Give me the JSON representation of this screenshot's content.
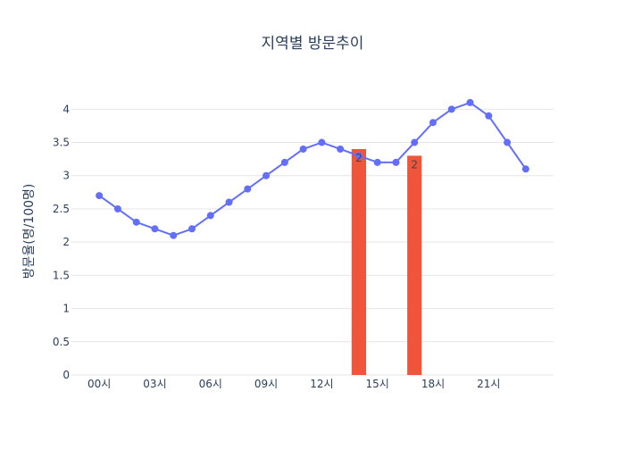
{
  "chart_data": {
    "type": "line",
    "title": "지역별 방문추이",
    "ylabel": "방문율(명/100명)",
    "xlabel": "",
    "ylim": [
      0,
      4.3
    ],
    "yticks": [
      0,
      0.5,
      1,
      1.5,
      2,
      2.5,
      3,
      3.5,
      4
    ],
    "ytick_labels": [
      "0",
      "0.5",
      "1",
      "1.5",
      "2",
      "2.5",
      "3",
      "3.5",
      "4"
    ],
    "xticks": [
      0,
      3,
      6,
      9,
      12,
      15,
      18,
      21
    ],
    "xtick_labels": [
      "00시",
      "03시",
      "06시",
      "09시",
      "12시",
      "15시",
      "18시",
      "21시"
    ],
    "grid": true,
    "series": [
      {
        "type": "line",
        "color": "#636efa",
        "x": [
          0,
          1,
          2,
          3,
          4,
          5,
          6,
          7,
          8,
          9,
          10,
          11,
          12,
          13,
          14,
          15,
          16,
          17,
          18,
          19,
          20,
          21,
          22,
          23
        ],
        "values": [
          2.7,
          2.5,
          2.3,
          2.2,
          2.1,
          2.2,
          2.4,
          2.6,
          2.8,
          3.0,
          3.2,
          3.4,
          3.5,
          3.4,
          3.3,
          3.2,
          3.2,
          3.5,
          3.8,
          4.0,
          4.1,
          3.9,
          3.5,
          3.1
        ]
      },
      {
        "type": "bar",
        "color": "#ef553b",
        "x": [
          14,
          17
        ],
        "values": [
          3.4,
          3.3
        ],
        "labels": [
          "2",
          "2"
        ]
      }
    ]
  }
}
